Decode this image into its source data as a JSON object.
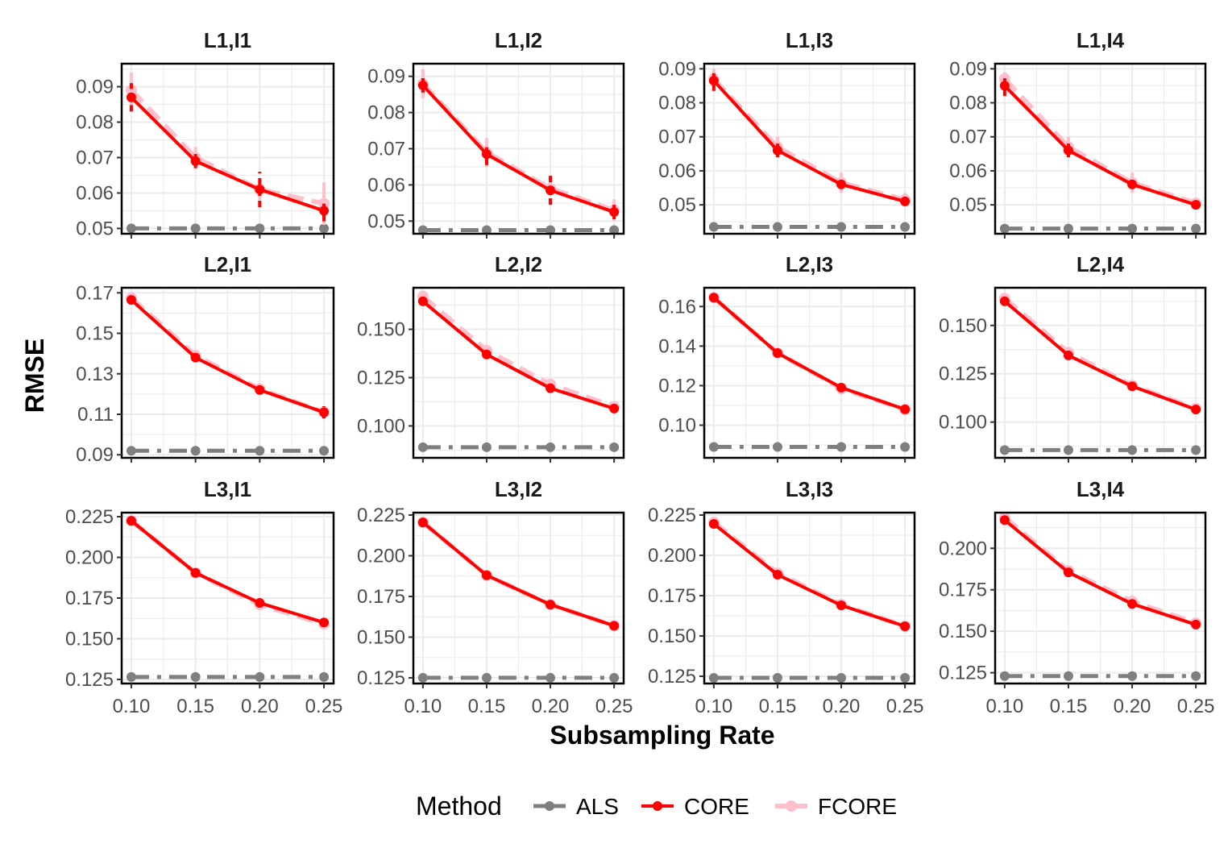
{
  "chart_data": {
    "type": "line",
    "title": "",
    "xlabel": "Subsampling Rate",
    "ylabel": "RMSE",
    "legend": {
      "title": "Method",
      "position": "bottom",
      "entries": [
        "ALS",
        "CORE",
        "FCORE"
      ]
    },
    "colors": {
      "ALS": "#7f7f7f",
      "CORE": "#ff0000",
      "FCORE": "#ffc0cb",
      "grid": "#ebebeb",
      "panel_border": "#000000"
    },
    "x": [
      0.1,
      0.15,
      0.2,
      0.25
    ],
    "x_ticks": [
      "0.10",
      "0.15",
      "0.20",
      "0.25"
    ],
    "xlim": [
      0.0925,
      0.2575
    ],
    "grid": true,
    "panels": [
      {
        "label": "L1,I1",
        "ylim": [
          0.0485,
          0.0965
        ],
        "y_ticks": [
          0.05,
          0.06,
          0.07,
          0.08,
          0.09
        ],
        "y_tick_labels": [
          "0.05",
          "0.06",
          "0.07",
          "0.08",
          "0.09"
        ],
        "series": [
          {
            "name": "ALS",
            "values": [
              0.05,
              0.05,
              0.05,
              0.05
            ],
            "err": [
              0,
              0,
              0,
              0
            ]
          },
          {
            "name": "CORE",
            "values": [
              0.087,
              0.069,
              0.061,
              0.055
            ],
            "err": [
              0.004,
              0.002,
              0.005,
              0.003
            ]
          },
          {
            "name": "FCORE",
            "values": [
              0.089,
              0.07,
              0.061,
              0.057
            ],
            "err": [
              0.005,
              0.003,
              0.003,
              0.006
            ]
          }
        ]
      },
      {
        "label": "L1,I2",
        "ylim": [
          0.0465,
          0.0935
        ],
        "y_ticks": [
          0.05,
          0.06,
          0.07,
          0.08,
          0.09
        ],
        "y_tick_labels": [
          "0.05",
          "0.06",
          "0.07",
          "0.08",
          "0.09"
        ],
        "series": [
          {
            "name": "ALS",
            "values": [
              0.0475,
              0.0475,
              0.0475,
              0.0475
            ],
            "err": [
              0,
              0,
              0,
              0
            ]
          },
          {
            "name": "CORE",
            "values": [
              0.0875,
              0.0685,
              0.0585,
              0.0525
            ],
            "err": [
              0.002,
              0.003,
              0.004,
              0.002
            ]
          },
          {
            "name": "FCORE",
            "values": [
              0.088,
              0.069,
              0.059,
              0.053
            ],
            "err": [
              0.004,
              0.004,
              0.002,
              0.003
            ]
          }
        ]
      },
      {
        "label": "L1,I3",
        "ylim": [
          0.0415,
          0.0915
        ],
        "y_ticks": [
          0.05,
          0.06,
          0.07,
          0.08,
          0.09
        ],
        "y_tick_labels": [
          "0.05",
          "0.06",
          "0.07",
          "0.08",
          "0.09"
        ],
        "series": [
          {
            "name": "ALS",
            "values": [
              0.0435,
              0.0435,
              0.0435,
              0.0435
            ],
            "err": [
              0,
              0,
              0,
              0
            ]
          },
          {
            "name": "CORE",
            "values": [
              0.0865,
              0.066,
              0.056,
              0.051
            ],
            "err": [
              0.003,
              0.002,
              0.001,
              0.001
            ]
          },
          {
            "name": "FCORE",
            "values": [
              0.087,
              0.067,
              0.0565,
              0.0515
            ],
            "err": [
              0.003,
              0.003,
              0.003,
              0.002
            ]
          }
        ]
      },
      {
        "label": "L1,I4",
        "ylim": [
          0.0415,
          0.0915
        ],
        "y_ticks": [
          0.05,
          0.06,
          0.07,
          0.08,
          0.09
        ],
        "y_tick_labels": [
          "0.05",
          "0.06",
          "0.07",
          "0.08",
          "0.09"
        ],
        "series": [
          {
            "name": "ALS",
            "values": [
              0.043,
              0.043,
              0.043,
              0.043
            ],
            "err": [
              0,
              0,
              0,
              0
            ]
          },
          {
            "name": "CORE",
            "values": [
              0.085,
              0.066,
              0.056,
              0.05
            ],
            "err": [
              0.003,
              0.002,
              0.001,
              0.001
            ]
          },
          {
            "name": "FCORE",
            "values": [
              0.087,
              0.067,
              0.0565,
              0.0505
            ],
            "err": [
              0.002,
              0.003,
              0.003,
              0.001
            ]
          }
        ]
      },
      {
        "label": "L2,I1",
        "ylim": [
          0.0885,
          0.1725
        ],
        "y_ticks": [
          0.09,
          0.11,
          0.13,
          0.15,
          0.17
        ],
        "y_tick_labels": [
          "0.09",
          "0.11",
          "0.13",
          "0.15",
          "0.17"
        ],
        "series": [
          {
            "name": "ALS",
            "values": [
              0.092,
              0.092,
              0.092,
              0.092
            ],
            "err": [
              0,
              0,
              0,
              0
            ]
          },
          {
            "name": "CORE",
            "values": [
              0.1665,
              0.138,
              0.122,
              0.111
            ],
            "err": [
              0.001,
              0.001,
              0.001,
              0.003
            ]
          },
          {
            "name": "FCORE",
            "values": [
              0.1675,
              0.139,
              0.1225,
              0.111
            ],
            "err": [
              0.001,
              0.001,
              0.001,
              0.001
            ]
          }
        ]
      },
      {
        "label": "L2,I2",
        "ylim": [
          0.0835,
          0.1715
        ],
        "y_ticks": [
          0.1,
          0.125,
          0.15
        ],
        "y_tick_labels": [
          "0.100",
          "0.125",
          "0.150"
        ],
        "series": [
          {
            "name": "ALS",
            "values": [
              0.089,
              0.089,
              0.089,
              0.089
            ],
            "err": [
              0,
              0,
              0,
              0
            ]
          },
          {
            "name": "CORE",
            "values": [
              0.1645,
              0.137,
              0.1195,
              0.109
            ],
            "err": [
              0.002,
              0.001,
              0.001,
              0.001
            ]
          },
          {
            "name": "FCORE",
            "values": [
              0.167,
              0.139,
              0.1215,
              0.11
            ],
            "err": [
              0.001,
              0.001,
              0.001,
              0.001
            ]
          }
        ]
      },
      {
        "label": "L2,I3",
        "ylim": [
          0.0835,
          0.1695
        ],
        "y_ticks": [
          0.1,
          0.12,
          0.14,
          0.16
        ],
        "y_tick_labels": [
          "0.10",
          "0.12",
          "0.14",
          "0.16"
        ],
        "series": [
          {
            "name": "ALS",
            "values": [
              0.089,
              0.089,
              0.089,
              0.089
            ],
            "err": [
              0,
              0,
              0,
              0
            ]
          },
          {
            "name": "CORE",
            "values": [
              0.1645,
              0.1365,
              0.119,
              0.108
            ],
            "err": [
              0.001,
              0.001,
              0.001,
              0.001
            ]
          },
          {
            "name": "FCORE",
            "values": [
              0.1645,
              0.1365,
              0.1185,
              0.108
            ],
            "err": [
              0.001,
              0.001,
              0.001,
              0.001
            ]
          }
        ]
      },
      {
        "label": "L2,I4",
        "ylim": [
          0.0815,
          0.1695
        ],
        "y_ticks": [
          0.1,
          0.125,
          0.15
        ],
        "y_tick_labels": [
          "0.100",
          "0.125",
          "0.150"
        ],
        "series": [
          {
            "name": "ALS",
            "values": [
              0.0855,
              0.0855,
              0.0855,
              0.0855
            ],
            "err": [
              0,
              0,
              0,
              0
            ]
          },
          {
            "name": "CORE",
            "values": [
              0.1625,
              0.1345,
              0.1185,
              0.1065
            ],
            "err": [
              0.001,
              0.001,
              0.001,
              0.001
            ]
          },
          {
            "name": "FCORE",
            "values": [
              0.164,
              0.136,
              0.119,
              0.107
            ],
            "err": [
              0.001,
              0.001,
              0.001,
              0.001
            ]
          }
        ]
      },
      {
        "label": "L3,I1",
        "ylim": [
          0.1225,
          0.2275
        ],
        "y_ticks": [
          0.125,
          0.15,
          0.175,
          0.2,
          0.225
        ],
        "y_tick_labels": [
          "0.125",
          "0.150",
          "0.175",
          "0.200",
          "0.225"
        ],
        "series": [
          {
            "name": "ALS",
            "values": [
              0.1265,
              0.1265,
              0.1265,
              0.1265
            ],
            "err": [
              0,
              0,
              0,
              0
            ]
          },
          {
            "name": "CORE",
            "values": [
              0.2225,
              0.1905,
              0.172,
              0.16
            ],
            "err": [
              0.001,
              0.001,
              0.001,
              0.001
            ]
          },
          {
            "name": "FCORE",
            "values": [
              0.2225,
              0.1905,
              0.171,
              0.159
            ],
            "err": [
              0.001,
              0.001,
              0.001,
              0.001
            ]
          }
        ]
      },
      {
        "label": "L3,I2",
        "ylim": [
          0.1215,
          0.2265
        ],
        "y_ticks": [
          0.125,
          0.15,
          0.175,
          0.2,
          0.225
        ],
        "y_tick_labels": [
          "0.125",
          "0.150",
          "0.175",
          "0.200",
          "0.225"
        ],
        "series": [
          {
            "name": "ALS",
            "values": [
              0.125,
              0.125,
              0.125,
              0.125
            ],
            "err": [
              0,
              0,
              0,
              0
            ]
          },
          {
            "name": "CORE",
            "values": [
              0.2205,
              0.188,
              0.17,
              0.157
            ],
            "err": [
              0.001,
              0.001,
              0.001,
              0.001
            ]
          },
          {
            "name": "FCORE",
            "values": [
              0.2205,
              0.188,
              0.17,
              0.157
            ],
            "err": [
              0.001,
              0.001,
              0.001,
              0.001
            ]
          }
        ]
      },
      {
        "label": "L3,I3",
        "ylim": [
          0.1205,
          0.2265
        ],
        "y_ticks": [
          0.125,
          0.15,
          0.175,
          0.2,
          0.225
        ],
        "y_tick_labels": [
          "0.125",
          "0.150",
          "0.175",
          "0.200",
          "0.225"
        ],
        "series": [
          {
            "name": "ALS",
            "values": [
              0.124,
              0.124,
              0.124,
              0.124
            ],
            "err": [
              0,
              0,
              0,
              0
            ]
          },
          {
            "name": "CORE",
            "values": [
              0.2195,
              0.188,
              0.169,
              0.156
            ],
            "err": [
              0.001,
              0.001,
              0.001,
              0.001
            ]
          },
          {
            "name": "FCORE",
            "values": [
              0.2205,
              0.189,
              0.1695,
              0.156
            ],
            "err": [
              0.001,
              0.001,
              0.001,
              0.001
            ]
          }
        ]
      },
      {
        "label": "L3,I4",
        "ylim": [
          0.1185,
          0.2215
        ],
        "y_ticks": [
          0.125,
          0.15,
          0.175,
          0.2
        ],
        "y_tick_labels": [
          "0.125",
          "0.150",
          "0.175",
          "0.200"
        ],
        "series": [
          {
            "name": "ALS",
            "values": [
              0.123,
              0.123,
              0.123,
              0.123
            ],
            "err": [
              0,
              0,
              0,
              0
            ]
          },
          {
            "name": "CORE",
            "values": [
              0.217,
              0.1855,
              0.1665,
              0.154
            ],
            "err": [
              0.001,
              0.001,
              0.001,
              0.001
            ]
          },
          {
            "name": "FCORE",
            "values": [
              0.2185,
              0.1865,
              0.168,
              0.155
            ],
            "err": [
              0.001,
              0.001,
              0.001,
              0.001
            ]
          }
        ]
      }
    ]
  }
}
